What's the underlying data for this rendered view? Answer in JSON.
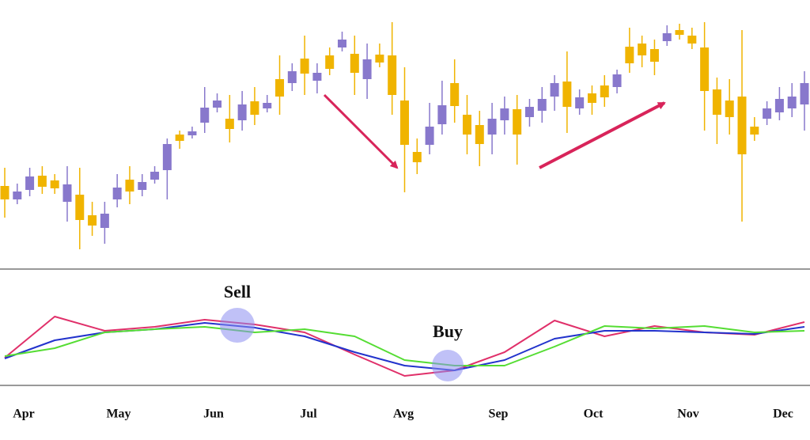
{
  "chart_data": {
    "type": "candlestick",
    "months": [
      "Apr",
      "May",
      "Jun",
      "Jul",
      "Avg",
      "Sep",
      "Oct",
      "Nov",
      "Dec"
    ],
    "open": [
      105,
      88,
      100,
      118,
      112,
      85,
      94,
      68,
      52,
      88,
      113,
      100,
      113,
      125,
      170,
      169,
      185,
      204,
      190,
      188,
      212,
      203,
      240,
      235,
      266,
      238,
      270,
      280,
      272,
      240,
      271,
      270,
      213,
      148,
      157,
      183,
      235,
      195,
      182,
      170,
      188,
      202,
      192,
      200,
      218,
      237,
      203,
      222,
      232,
      230,
      281,
      285,
      278,
      288,
      302,
      295,
      280,
      227,
      213,
      218,
      180,
      190,
      198,
      203,
      208
    ],
    "high": [
      128,
      108,
      128,
      130,
      120,
      130,
      128,
      85,
      85,
      120,
      130,
      120,
      130,
      165,
      175,
      180,
      230,
      222,
      220,
      225,
      230,
      220,
      270,
      260,
      295,
      260,
      280,
      300,
      295,
      285,
      285,
      312,
      255,
      165,
      210,
      238,
      265,
      220,
      200,
      210,
      218,
      220,
      215,
      230,
      245,
      275,
      227,
      232,
      245,
      252,
      305,
      295,
      290,
      308,
      310,
      305,
      312,
      242,
      240,
      302,
      192,
      212,
      230,
      235,
      250
    ],
    "low": [
      65,
      82,
      92,
      95,
      95,
      60,
      25,
      42,
      32,
      78,
      82,
      92,
      108,
      88,
      152,
      165,
      172,
      198,
      160,
      175,
      182,
      198,
      195,
      225,
      220,
      222,
      245,
      275,
      220,
      215,
      255,
      195,
      97,
      120,
      145,
      170,
      185,
      145,
      130,
      145,
      170,
      132,
      180,
      185,
      200,
      172,
      195,
      195,
      205,
      222,
      248,
      255,
      245,
      282,
      290,
      278,
      175,
      158,
      170,
      60,
      162,
      182,
      188,
      192,
      175
    ],
    "close": [
      88,
      98,
      117,
      104,
      102,
      107,
      62,
      55,
      70,
      103,
      98,
      110,
      123,
      158,
      162,
      174,
      204,
      213,
      177,
      208,
      195,
      210,
      218,
      250,
      247,
      248,
      253,
      290,
      248,
      265,
      261,
      220,
      157,
      135,
      180,
      207,
      206,
      170,
      158,
      190,
      203,
      170,
      205,
      215,
      235,
      205,
      217,
      210,
      217,
      246,
      260,
      270,
      262,
      298,
      296,
      285,
      225,
      195,
      192,
      145,
      170,
      203,
      215,
      218,
      235
    ],
    "up_color": "#8878cc",
    "down_color": "#f0b400",
    "ylim": [
      0,
      340
    ],
    "indicator": {
      "type": "line",
      "x": [
        0,
        4,
        8,
        12,
        16,
        20,
        24,
        28,
        32,
        36,
        40,
        44,
        48,
        52,
        56,
        60,
        64
      ],
      "xlim": [
        0,
        64
      ],
      "ylim": [
        0,
        147
      ],
      "series": [
        {
          "color": "#e0306a",
          "values": [
            35,
            87,
            69,
            74,
            83,
            77,
            67,
            39,
            12,
            19,
            42,
            82,
            62,
            75,
            67,
            64,
            80
          ]
        },
        {
          "color": "#2233cc",
          "values": [
            34,
            57,
            67,
            71,
            79,
            73,
            62,
            42,
            25,
            19,
            32,
            59,
            69,
            69,
            67,
            65,
            74
          ]
        },
        {
          "color": "#55dd33",
          "values": [
            37,
            47,
            67,
            71,
            74,
            67,
            71,
            62,
            32,
            25,
            25,
            49,
            75,
            72,
            75,
            67,
            69
          ]
        }
      ]
    },
    "annotations": [
      "Sell",
      "Buy"
    ]
  }
}
